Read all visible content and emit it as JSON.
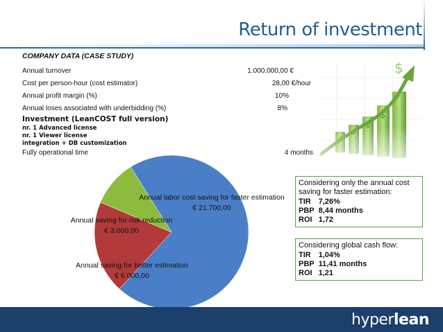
{
  "slide": {
    "title": "Return of investment",
    "company_heading": "COMPANY DATA (CASE STUDY)",
    "company_rows": [
      {
        "label": "Annual turnover",
        "value": "1.000.000,00 €"
      },
      {
        "label": "Cost per person-hour (cost estimator)",
        "value": "28,00 €/hour"
      },
      {
        "label": "Annual profit margin  (%)",
        "value": "10%"
      },
      {
        "label": "Annual loses associated with underbidding (%)",
        "value": "8%"
      }
    ],
    "investment_heading": "Investment (LeanCOST full version)",
    "investment_items": [
      "nr. 1 Advanced license",
      "nr. 1 Viewer license",
      "integration + DB customization"
    ],
    "operational_label": "Fully operational time",
    "operational_value": "4 months"
  },
  "box_annual": {
    "header": "Considering only the annual cost saving for faster estimation:",
    "rows": [
      {
        "k": "TIR",
        "v": "7,26%"
      },
      {
        "k": "PBP",
        "v": "8,44 months"
      },
      {
        "k": "ROI",
        "v": "1,72"
      }
    ]
  },
  "box_global": {
    "header": "Considering global cash flow:",
    "rows": [
      {
        "k": "TIR",
        "v": "1,04%"
      },
      {
        "k": "PBP",
        "v": "11,41 months"
      },
      {
        "k": "ROI",
        "v": "1,21"
      }
    ]
  },
  "chart_data": {
    "type": "pie",
    "title": "",
    "slices": [
      {
        "label": "Annual labor cost saving for faster estimation",
        "value": 21700,
        "display": "€ 21.700,00",
        "color": "#4a7fc8"
      },
      {
        "label": "Annual saving for better estimation",
        "value": 6000,
        "display": "€ 6.000,00",
        "color": "#b33a3a"
      },
      {
        "label": "Annual saving for risk reduction",
        "value": 3000,
        "display": "€ 3.000,00",
        "color": "#8dbb3e"
      }
    ]
  },
  "footer": {
    "logo_hyper": "hyper",
    "logo_lean": "lean"
  },
  "colors": {
    "title": "#1f5e93",
    "footer": "#1c3f6c",
    "box_border": "#5aa245"
  }
}
